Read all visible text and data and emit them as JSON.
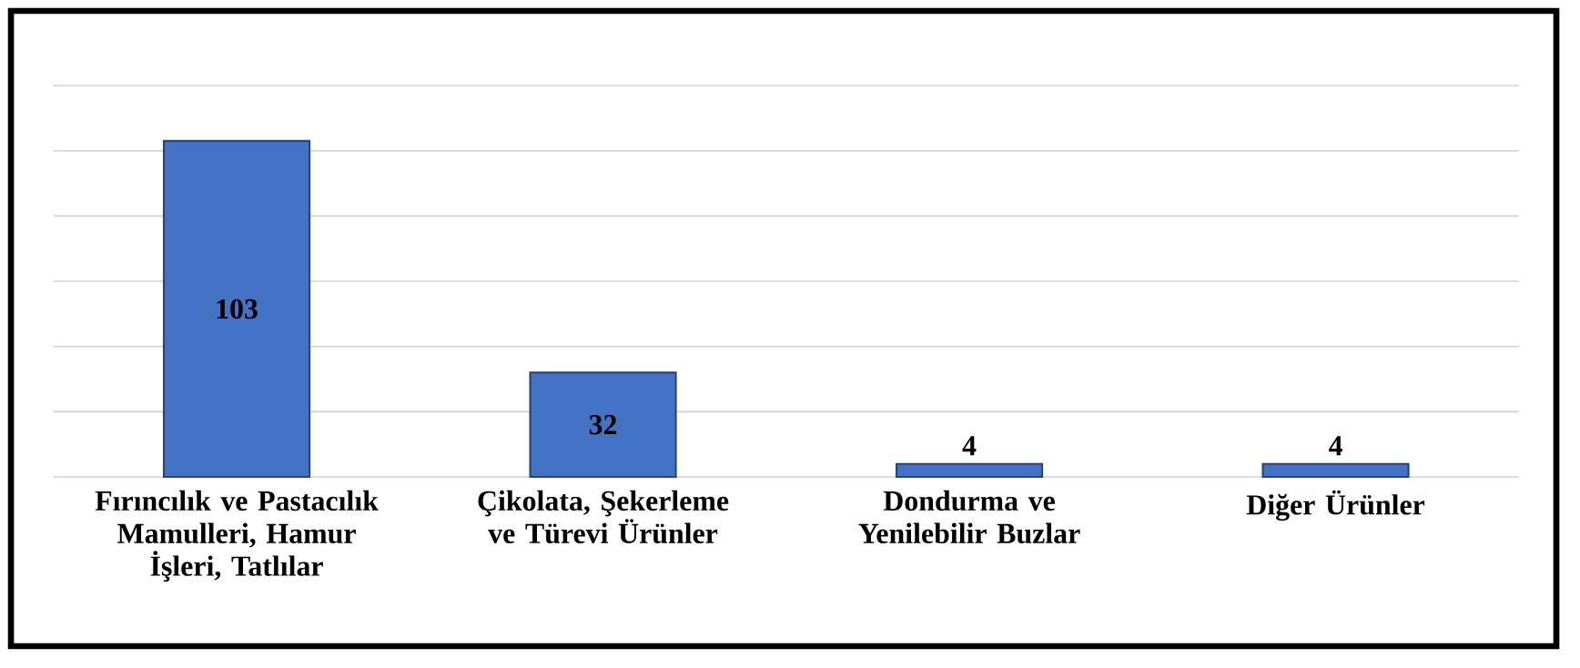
{
  "chart_data": {
    "type": "bar",
    "categories": [
      "Fırıncılık ve Pastacılık Mamulleri, Hamur İşleri, Tatlılar",
      "Çikolata, Şekerleme ve Türevi Ürünler",
      "Dondurma ve Yenilebilir Buzlar",
      "Diğer Ürünler"
    ],
    "values": [
      103,
      32,
      4,
      4
    ],
    "color": "#4472c4",
    "ylim": [
      0,
      120
    ],
    "yticks": [
      {
        "value": 0,
        "label": null
      },
      {
        "value": 20,
        "label": null
      },
      {
        "value": 40,
        "label": null
      },
      {
        "value": 60,
        "label": null
      },
      {
        "value": 80,
        "label": null
      },
      {
        "value": 100,
        "label": null
      },
      {
        "value": 120,
        "label": null
      }
    ],
    "grid": "y",
    "tick_labels": "x",
    "data_labels": true
  }
}
